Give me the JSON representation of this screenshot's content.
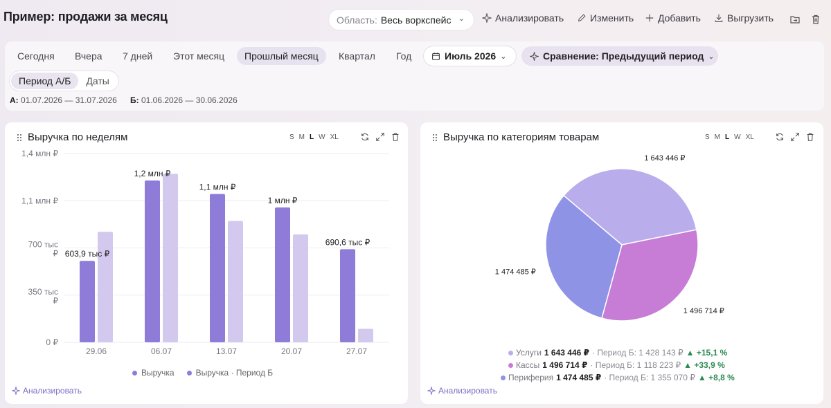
{
  "header": {
    "title": "Пример: продажи за месяц",
    "scope_label": "Область:",
    "scope_value": "Весь воркспейс",
    "analyze": "Анализировать",
    "edit": "Изменить",
    "add": "Добавить",
    "export": "Выгрузить"
  },
  "filters": {
    "period_tabs": [
      "Сегодня",
      "Вчера",
      "7 дней",
      "Этот месяц",
      "Прошлый месяц",
      "Квартал",
      "Год"
    ],
    "active_tab": "Прошлый месяц",
    "date_value": "Июль 2026",
    "comparison": "Сравнение: Предыдущий период",
    "mode_tabs": [
      "Период А/Б",
      "Даты"
    ],
    "range_a_label": "А:",
    "range_a": "01.07.2026 — 31.07.2026",
    "range_b_label": "Б:",
    "range_b": "01.06.2026 — 30.06.2026"
  },
  "widgets": {
    "sizes": [
      "S",
      "M",
      "L",
      "W",
      "XL"
    ],
    "active_size": "L",
    "analyze_link": "Анализировать"
  },
  "colors": {
    "series_a": "#8f7bd8",
    "series_b": "#d3c9ee",
    "slice_services": "#b9adec",
    "slice_kassy": "#c77cd6",
    "slice_periphery": "#8e93e6",
    "positive": "#2e8a55"
  },
  "chart_data": [
    {
      "type": "bar",
      "title": "Выручка по неделям",
      "categories": [
        "29.06",
        "06.07",
        "13.07",
        "20.07",
        "27.07"
      ],
      "series": [
        {
          "name": "Выручка",
          "values": [
            603900,
            1200000,
            1100000,
            1000000,
            690600
          ]
        },
        {
          "name": "Выручка · Период Б",
          "values": [
            820000,
            1250000,
            900000,
            800000,
            100000
          ]
        }
      ],
      "data_labels": [
        "603,9 тыс ₽",
        "1,2 млн ₽",
        "1,1 млн ₽",
        "1 млн ₽",
        "690,6 тыс ₽"
      ],
      "y_ticks": [
        "0 ₽",
        "350 тыс ₽",
        "700 тыс ₽",
        "1,1 млн ₽",
        "1,4 млн ₽"
      ],
      "ylim": [
        0,
        1400000
      ],
      "grid": true,
      "legend": "bottom"
    },
    {
      "type": "pie",
      "title": "Выручка по категориям товарам",
      "labels": [
        "Услуги",
        "Кассы",
        "Периферия"
      ],
      "values": [
        1643446,
        1496714,
        1474485
      ],
      "value_labels": [
        "1 643 446 ₽",
        "1 496 714 ₽",
        "1 474 485 ₽"
      ],
      "period_b": [
        "Период Б: 1 428 143 ₽",
        "Период Б: 1 118 223 ₽",
        "Период Б: 1 355 070 ₽"
      ],
      "deltas": [
        "+15,1 %",
        "+33,9 %",
        "+8,8 %"
      ],
      "legend": "bottom"
    }
  ]
}
